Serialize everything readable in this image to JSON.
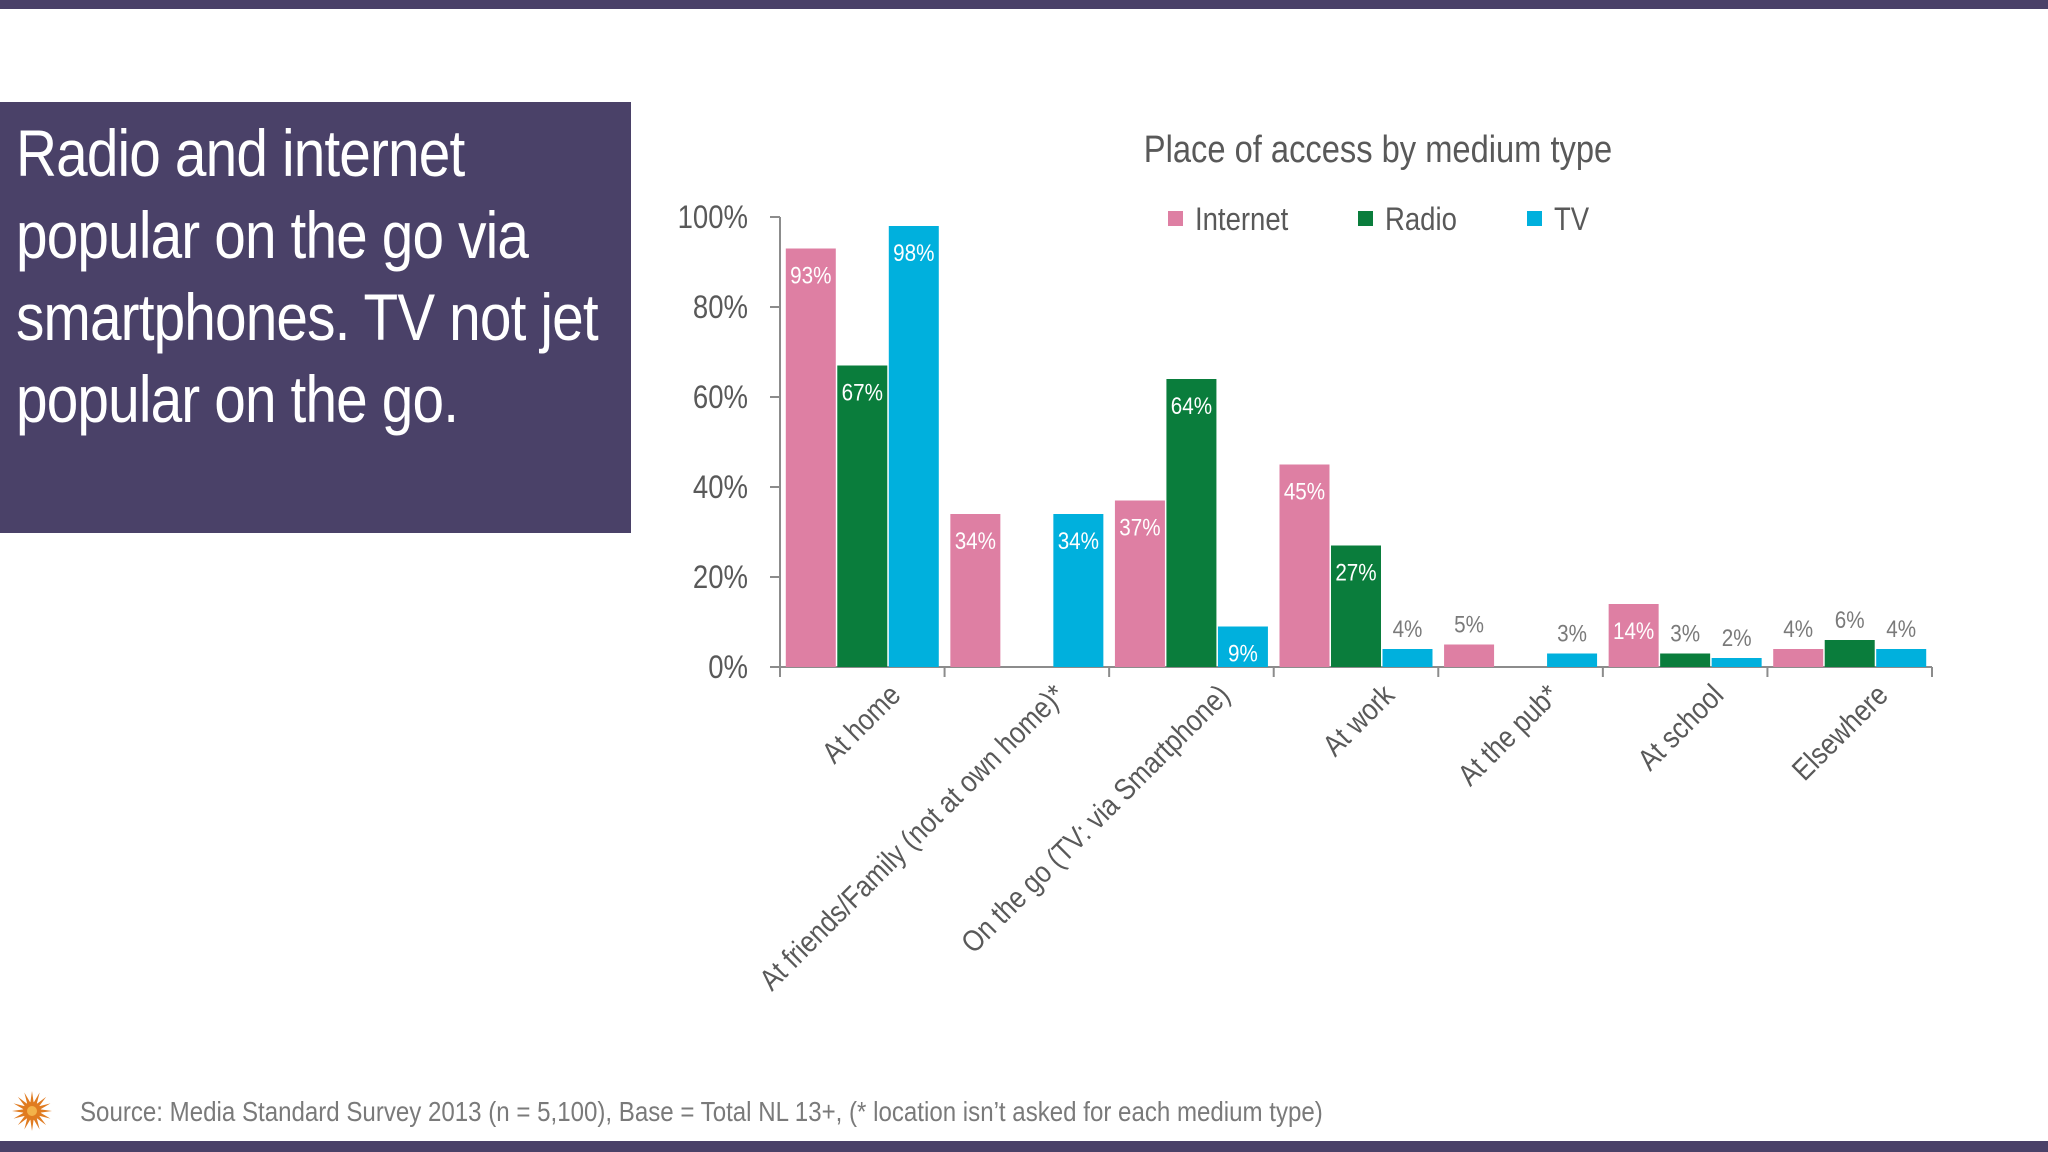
{
  "slide": {
    "headline": "Radio and internet popular on the go via smartphones. TV not jet popular on the go.",
    "source": "Source: Media Standard Survey 2013 (n =  5,100), Base = Total NL 13+, (* location isn’t asked for each medium type)"
  },
  "colors": {
    "band": "#4a4168",
    "Internet": "#de7fa3",
    "Radio": "#0a7d3c",
    "TV": "#00b0dd",
    "logo": "#e07b20"
  },
  "logo_icon": "sun-emblem-icon",
  "chart_data": {
    "type": "bar",
    "title": "Place of access by medium type",
    "categories": [
      "At home",
      "At friends/Family (not at own home)*",
      "On the go (TV: via Smartphone)",
      "At work",
      "At the pub*",
      "At school",
      "Elsewhere"
    ],
    "series": [
      {
        "name": "Internet",
        "color": "#de7fa3",
        "values": [
          93,
          34,
          null,
          45,
          5,
          14,
          4
        ],
        "labels": [
          "93%",
          "34%",
          null,
          "45%",
          "5%",
          "14%",
          "4%"
        ]
      },
      {
        "name": "Radio",
        "color": "#0a7d3c",
        "values": [
          67,
          null,
          64,
          27,
          null,
          3,
          6
        ],
        "labels": [
          "67%",
          null,
          "64%",
          "27%",
          null,
          "3%",
          "6%"
        ]
      },
      {
        "name": "TV",
        "color": "#00b0dd",
        "values": [
          98,
          34,
          9,
          4,
          3,
          2,
          4
        ],
        "labels": [
          "98%",
          "34%",
          "9%",
          "4%",
          "3%",
          "2%",
          "4%"
        ]
      }
    ],
    "on_the_go_internet_value": 37,
    "on_the_go_internet_label": "37%",
    "y_ticks": [
      "0%",
      "20%",
      "40%",
      "60%",
      "80%",
      "100%"
    ],
    "ylim": [
      0,
      100
    ],
    "grid": false,
    "legend": "top"
  }
}
